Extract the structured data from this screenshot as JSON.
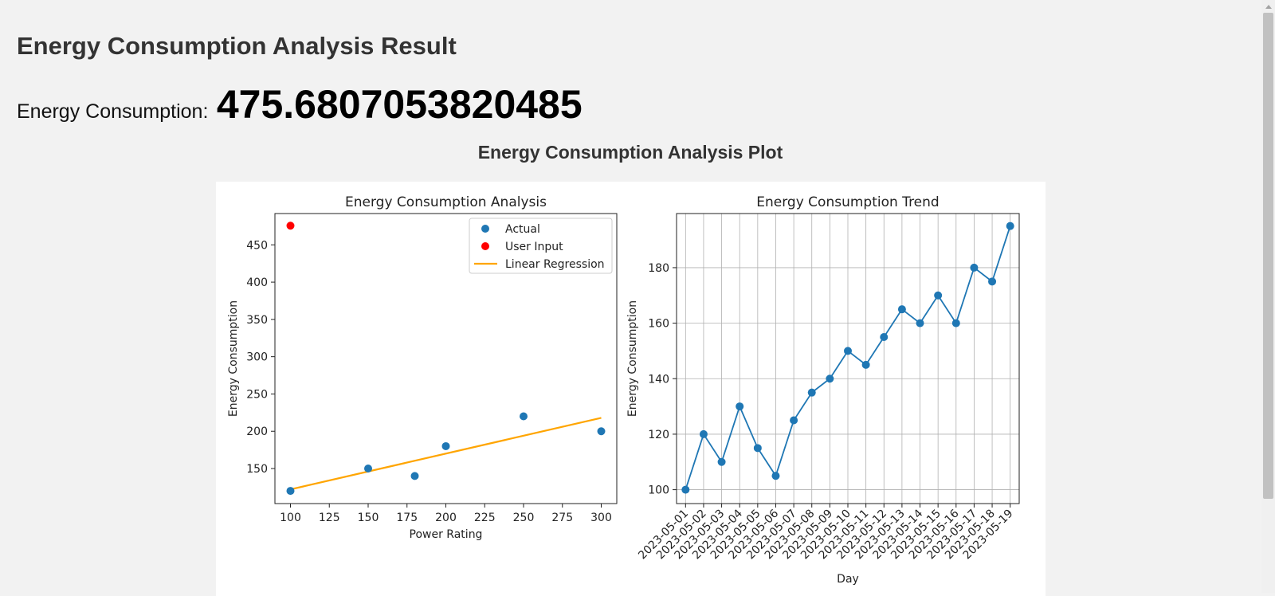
{
  "page": {
    "title": "Energy Consumption Analysis Result",
    "result_label": "Energy Consumption:",
    "result_value": "475.6807053820485",
    "plot_heading": "Energy Consumption Analysis Plot"
  },
  "colors": {
    "actual": "#1f77b4",
    "user_input": "#ff0000",
    "regression": "#ffa500",
    "trend": "#1f77b4"
  },
  "chart_data": [
    {
      "type": "scatter",
      "title": "Energy Consumption Analysis",
      "xlabel": "Power Rating",
      "ylabel": "Energy Consumption",
      "xlim": [
        90,
        310
      ],
      "ylim": [
        103,
        492
      ],
      "x_ticks": [
        100,
        125,
        150,
        175,
        200,
        225,
        250,
        275,
        300
      ],
      "y_ticks": [
        150,
        200,
        250,
        300,
        350,
        400,
        450
      ],
      "grid": false,
      "legend_position": "top-right",
      "series": [
        {
          "name": "Actual",
          "x": [
            100,
            150,
            180,
            200,
            250,
            300
          ],
          "y": [
            120,
            150,
            140,
            180,
            220,
            200
          ]
        },
        {
          "name": "User Input",
          "x": [
            100
          ],
          "y": [
            475.6807053820485
          ]
        },
        {
          "name": "Linear Regression",
          "x": [
            100,
            300
          ],
          "y": [
            122,
            218
          ]
        }
      ]
    },
    {
      "type": "line",
      "title": "Energy Consumption Trend",
      "xlabel": "Day",
      "ylabel": "Energy Consumption",
      "ylim": [
        95,
        199.5
      ],
      "y_ticks": [
        100,
        120,
        140,
        160,
        180
      ],
      "grid": true,
      "categories": [
        "2023-05-01",
        "2023-05-02",
        "2023-05-03",
        "2023-05-04",
        "2023-05-05",
        "2023-05-06",
        "2023-05-07",
        "2023-05-08",
        "2023-05-09",
        "2023-05-10",
        "2023-05-11",
        "2023-05-12",
        "2023-05-13",
        "2023-05-14",
        "2023-05-15",
        "2023-05-16",
        "2023-05-17",
        "2023-05-18",
        "2023-05-19"
      ],
      "values": [
        100,
        120,
        110,
        130,
        115,
        105,
        125,
        135,
        140,
        150,
        145,
        155,
        165,
        160,
        170,
        160,
        180,
        175,
        195
      ]
    }
  ]
}
